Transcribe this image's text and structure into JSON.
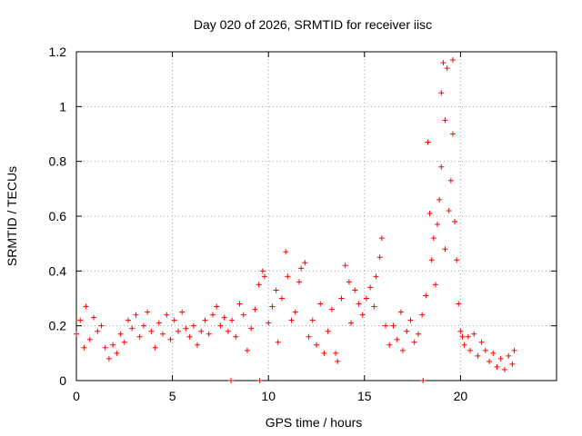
{
  "chart_data": {
    "type": "scatter",
    "title": "Day 020 of 2026, SRMTID for receiver iisc",
    "xlabel": "GPS time / hours",
    "ylabel": "SRMTID / TECUs",
    "xlim": [
      0,
      25
    ],
    "ylim": [
      0,
      1.2
    ],
    "xticks": [
      0,
      5,
      10,
      15,
      20
    ],
    "yticks": [
      0,
      0.2,
      0.4,
      0.6,
      0.8,
      1,
      1.2
    ],
    "ytick_labels": [
      "0",
      "0.2",
      "0.4",
      "0.6",
      "0.8",
      "1",
      "1.2"
    ],
    "grid": true,
    "marker": "+",
    "color": "#ff0000",
    "series": [
      {
        "name": "SRMTID",
        "points": [
          [
            0.0,
            0.17
          ],
          [
            0.2,
            0.22
          ],
          [
            0.4,
            0.12
          ],
          [
            0.5,
            0.27
          ],
          [
            0.7,
            0.15
          ],
          [
            0.9,
            0.23
          ],
          [
            1.1,
            0.18
          ],
          [
            1.3,
            0.2
          ],
          [
            1.5,
            0.12
          ],
          [
            1.7,
            0.08
          ],
          [
            1.9,
            0.13
          ],
          [
            2.1,
            0.1
          ],
          [
            2.3,
            0.17
          ],
          [
            2.5,
            0.14
          ],
          [
            2.7,
            0.22
          ],
          [
            2.9,
            0.19
          ],
          [
            3.1,
            0.24
          ],
          [
            3.3,
            0.16
          ],
          [
            3.5,
            0.2
          ],
          [
            3.7,
            0.25
          ],
          [
            3.9,
            0.18
          ],
          [
            4.1,
            0.12
          ],
          [
            4.3,
            0.21
          ],
          [
            4.5,
            0.17
          ],
          [
            4.7,
            0.24
          ],
          [
            4.9,
            0.15
          ],
          [
            5.1,
            0.22
          ],
          [
            5.3,
            0.18
          ],
          [
            5.5,
            0.25
          ],
          [
            5.7,
            0.19
          ],
          [
            5.9,
            0.16
          ],
          [
            6.1,
            0.2
          ],
          [
            6.3,
            0.13
          ],
          [
            6.5,
            0.18
          ],
          [
            6.7,
            0.22
          ],
          [
            6.9,
            0.17
          ],
          [
            7.1,
            0.24
          ],
          [
            7.3,
            0.27
          ],
          [
            7.5,
            0.2
          ],
          [
            7.7,
            0.23
          ],
          [
            7.9,
            0.18
          ],
          [
            8.1,
            0.22
          ],
          [
            8.3,
            0.16
          ],
          [
            8.5,
            0.28
          ],
          [
            8.7,
            0.24
          ],
          [
            8.9,
            0.11
          ],
          [
            9.1,
            0.19
          ],
          [
            9.3,
            0.26
          ],
          [
            9.5,
            0.35
          ],
          [
            9.7,
            0.4
          ],
          [
            9.8,
            0.38
          ],
          [
            10.0,
            0.21
          ],
          [
            10.2,
            0.27
          ],
          [
            10.4,
            0.33
          ],
          [
            10.5,
            0.14
          ],
          [
            10.7,
            0.3
          ],
          [
            10.9,
            0.47
          ],
          [
            11.0,
            0.38
          ],
          [
            11.2,
            0.22
          ],
          [
            11.4,
            0.25
          ],
          [
            11.6,
            0.36
          ],
          [
            11.7,
            0.41
          ],
          [
            11.9,
            0.43
          ],
          [
            12.1,
            0.16
          ],
          [
            12.3,
            0.22
          ],
          [
            12.5,
            0.13
          ],
          [
            12.7,
            0.28
          ],
          [
            12.9,
            0.1
          ],
          [
            13.1,
            0.18
          ],
          [
            13.3,
            0.26
          ],
          [
            13.5,
            0.1
          ],
          [
            13.6,
            0.07
          ],
          [
            13.8,
            0.3
          ],
          [
            14.0,
            0.42
          ],
          [
            14.2,
            0.36
          ],
          [
            14.3,
            0.21
          ],
          [
            14.5,
            0.33
          ],
          [
            14.7,
            0.28
          ],
          [
            14.9,
            0.24
          ],
          [
            15.1,
            0.3
          ],
          [
            15.3,
            0.34
          ],
          [
            15.5,
            0.27
          ],
          [
            15.6,
            0.38
          ],
          [
            15.8,
            0.45
          ],
          [
            15.9,
            0.52
          ],
          [
            16.1,
            0.2
          ],
          [
            16.3,
            0.13
          ],
          [
            16.5,
            0.2
          ],
          [
            16.7,
            0.15
          ],
          [
            16.9,
            0.25
          ],
          [
            17.0,
            0.11
          ],
          [
            17.2,
            0.18
          ],
          [
            17.4,
            0.22
          ],
          [
            17.6,
            0.14
          ],
          [
            17.8,
            0.17
          ],
          [
            18.0,
            0.24
          ],
          [
            18.2,
            0.31
          ],
          [
            18.3,
            0.87
          ],
          [
            18.4,
            0.61
          ],
          [
            18.5,
            0.44
          ],
          [
            18.6,
            0.52
          ],
          [
            18.7,
            0.35
          ],
          [
            18.8,
            0.57
          ],
          [
            18.9,
            0.66
          ],
          [
            19.0,
            0.78
          ],
          [
            19.0,
            1.05
          ],
          [
            19.1,
            1.16
          ],
          [
            19.2,
            0.95
          ],
          [
            19.2,
            0.48
          ],
          [
            19.3,
            1.14
          ],
          [
            19.4,
            0.62
          ],
          [
            19.5,
            0.73
          ],
          [
            19.6,
            1.17
          ],
          [
            19.6,
            0.9
          ],
          [
            19.7,
            0.58
          ],
          [
            19.8,
            0.44
          ],
          [
            19.9,
            0.28
          ],
          [
            20.0,
            0.18
          ],
          [
            20.1,
            0.16
          ],
          [
            20.2,
            0.13
          ],
          [
            20.4,
            0.16
          ],
          [
            20.5,
            0.11
          ],
          [
            20.7,
            0.17
          ],
          [
            20.9,
            0.09
          ],
          [
            21.1,
            0.14
          ],
          [
            21.3,
            0.11
          ],
          [
            21.5,
            0.07
          ],
          [
            21.7,
            0.1
          ],
          [
            21.9,
            0.05
          ],
          [
            22.1,
            0.08
          ],
          [
            22.3,
            0.04
          ],
          [
            22.5,
            0.09
          ],
          [
            22.7,
            0.06
          ],
          [
            22.8,
            0.11
          ],
          [
            8.05,
            0.0
          ],
          [
            9.55,
            0.0
          ],
          [
            18.05,
            0.0
          ]
        ]
      }
    ]
  }
}
